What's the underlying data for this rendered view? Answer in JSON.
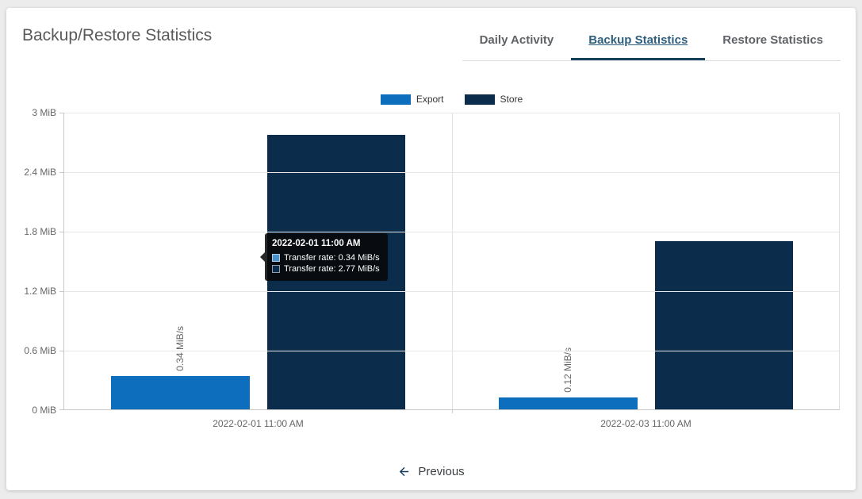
{
  "page": {
    "title": "Backup/Restore Statistics"
  },
  "tabs": [
    {
      "label": "Daily Activity",
      "active": false
    },
    {
      "label": "Backup Statistics",
      "active": true
    },
    {
      "label": "Restore Statistics",
      "active": false
    }
  ],
  "chart_data": {
    "type": "bar",
    "categories": [
      "2022-02-01 11:00 AM",
      "2022-02-03 11:00 AM"
    ],
    "series": [
      {
        "name": "Export",
        "color": "#0d6ebd",
        "values": [
          0.34,
          0.12
        ],
        "bar_labels": [
          "0.34 MiB/s",
          "0.12 MiB/s"
        ]
      },
      {
        "name": "Store",
        "color": "#0c2c4b",
        "values": [
          2.77,
          1.7
        ],
        "bar_labels": [
          "",
          ""
        ]
      }
    ],
    "unit": "MiB/s",
    "ylim": [
      0,
      3
    ],
    "yticks": [
      {
        "value": 3,
        "label": "3 MiB"
      },
      {
        "value": 2.4,
        "label": "2.4 MiB"
      },
      {
        "value": 1.8,
        "label": "1.8 MiB"
      },
      {
        "value": 1.2,
        "label": "1.2 MiB"
      },
      {
        "value": 0.6,
        "label": "0.6 MiB"
      },
      {
        "value": 0,
        "label": "0 MiB"
      }
    ],
    "legend_position": "top",
    "grid": true
  },
  "tooltip": {
    "title": "2022-02-01 11:00 AM",
    "rows": [
      {
        "swatch_color": "#4a90c9",
        "text": "Transfer rate: 0.34 MiB/s"
      },
      {
        "swatch_color": "#0c2c4b",
        "text": "Transfer rate: 2.77 MiB/s"
      }
    ]
  },
  "pagination": {
    "previous_label": "Previous"
  },
  "colors": {
    "accent_navy": "#16405e",
    "active_tab_text": "#2e5f7d",
    "export_bar": "#0d6ebd",
    "store_bar": "#0c2c4b",
    "page_background": "#ececec"
  }
}
